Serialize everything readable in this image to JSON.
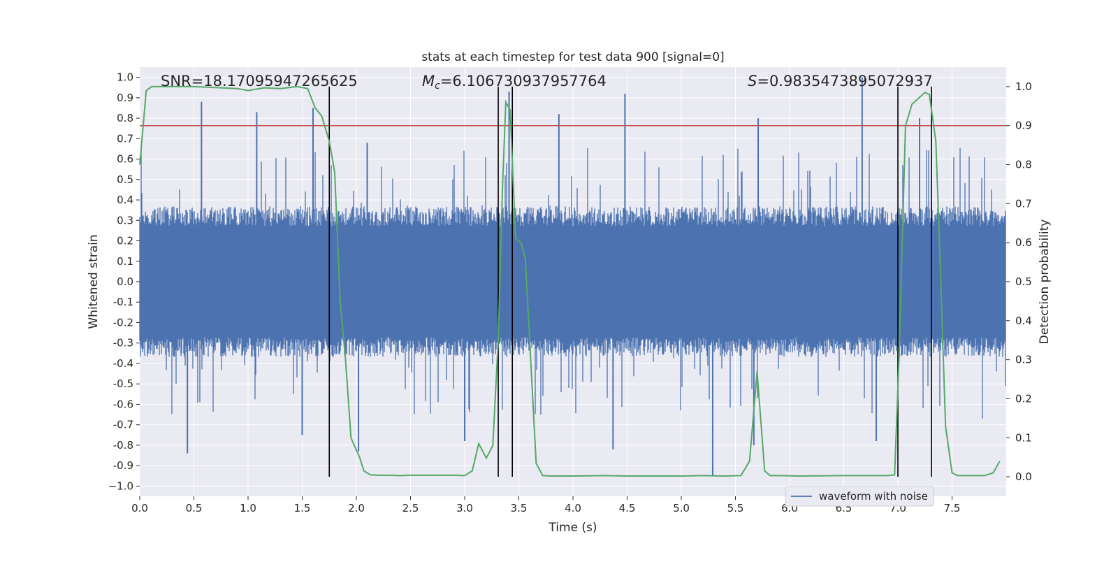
{
  "chart_data": {
    "type": "line",
    "title": "stats at each timestep for test data 900 [signal=0]",
    "xlabel": "Time (s)",
    "ylabel_left": "Whitened strain",
    "ylabel_right": "Detection probability",
    "xlim": [
      0,
      8
    ],
    "ylim_left": [
      -1.05,
      1.05
    ],
    "ylim_right": [
      -0.05,
      1.05
    ],
    "x_ticks": [
      "0.0",
      "0.5",
      "1.0",
      "1.5",
      "2.0",
      "2.5",
      "3.0",
      "3.5",
      "4.0",
      "4.5",
      "5.0",
      "5.5",
      "6.0",
      "6.5",
      "7.0",
      "7.5"
    ],
    "x_tick_values": [
      0,
      0.5,
      1.0,
      1.5,
      2.0,
      2.5,
      3.0,
      3.5,
      4.0,
      4.5,
      5.0,
      5.5,
      6.0,
      6.5,
      7.0,
      7.5
    ],
    "y_left_ticks": [
      "1.0",
      "0.9",
      "0.8",
      "0.7",
      "0.6",
      "0.5",
      "0.4",
      "0.3",
      "0.2",
      "0.1",
      "0.0",
      "-0.1",
      "-0.2",
      "-0.3",
      "-0.4",
      "-0.5",
      "-0.6",
      "-0.7",
      "-0.8",
      "-0.9",
      "−1.0"
    ],
    "y_left_tick_values": [
      1.0,
      0.9,
      0.8,
      0.7,
      0.6,
      0.5,
      0.4,
      0.3,
      0.2,
      0.1,
      0.0,
      -0.1,
      -0.2,
      -0.3,
      -0.4,
      -0.5,
      -0.6,
      -0.7,
      -0.8,
      -0.9,
      -1.0
    ],
    "y_right_ticks": [
      "1.0",
      "0.9",
      "0.8",
      "0.7",
      "0.6",
      "0.5",
      "0.4",
      "0.3",
      "0.2",
      "0.1",
      "0.0"
    ],
    "y_right_tick_values": [
      1.0,
      0.9,
      0.8,
      0.7,
      0.6,
      0.5,
      0.4,
      0.3,
      0.2,
      0.1,
      0.0
    ],
    "grid": true,
    "legend": {
      "position": "lower-right",
      "entries": [
        "waveform with noise"
      ]
    },
    "annotations": {
      "snr": "SNR=18.17095947265625",
      "mc_symbol": "M",
      "mc_sub": "c",
      "mc_value": "=6.106730937957764",
      "s_symbol": "S",
      "s_value": "=0.9835473895072937"
    },
    "threshold_right": 0.9,
    "vertical_lines": [
      1.75,
      3.31,
      3.44,
      7.0,
      7.31
    ],
    "series": [
      {
        "name": "waveform with noise",
        "axis": "left",
        "kind": "noise",
        "typical_amplitude": 0.32,
        "peak_positive": [
          [
            0.57,
            0.88
          ],
          [
            1.08,
            0.83
          ],
          [
            1.6,
            0.85
          ],
          [
            2.1,
            0.68
          ],
          [
            3.41,
            0.93
          ],
          [
            3.87,
            0.82
          ],
          [
            4.48,
            0.92
          ],
          [
            5.71,
            0.8
          ],
          [
            6.67,
            1.0
          ],
          [
            7.2,
            0.8
          ]
        ],
        "peak_negative": [
          [
            0.44,
            -0.84
          ],
          [
            1.5,
            -0.75
          ],
          [
            2.02,
            -0.83
          ],
          [
            3.0,
            -0.78
          ],
          [
            4.37,
            -0.82
          ],
          [
            5.29,
            -0.95
          ],
          [
            5.67,
            -0.8
          ],
          [
            6.8,
            -0.78
          ]
        ]
      },
      {
        "name": "",
        "axis": "right",
        "kind": "probability",
        "color": "#55a868",
        "x": [
          0.0,
          0.06,
          0.11,
          0.25,
          0.5,
          0.75,
          0.9,
          1.0,
          1.15,
          1.3,
          1.45,
          1.55,
          1.62,
          1.68,
          1.75,
          1.8,
          1.85,
          1.9,
          1.95,
          2.03,
          2.07,
          2.13,
          2.2,
          2.3,
          2.4,
          2.5,
          2.6,
          2.7,
          2.8,
          2.9,
          3.0,
          3.07,
          3.13,
          3.2,
          3.26,
          3.31,
          3.35,
          3.38,
          3.42,
          3.47,
          3.52,
          3.56,
          3.6,
          3.66,
          3.72,
          3.8,
          4.0,
          4.3,
          4.5,
          4.7,
          5.0,
          5.2,
          5.4,
          5.55,
          5.63,
          5.7,
          5.77,
          5.82,
          5.9,
          6.1,
          6.5,
          6.7,
          6.9,
          6.97,
          7.01,
          7.07,
          7.13,
          7.25,
          7.29,
          7.35,
          7.39,
          7.44,
          7.5,
          7.55,
          7.65,
          7.8,
          7.88,
          7.94
        ],
        "y": [
          0.8,
          0.99,
          1.0,
          1.0,
          1.0,
          0.997,
          0.995,
          0.99,
          0.997,
          0.995,
          1.0,
          0.995,
          0.945,
          0.925,
          0.86,
          0.78,
          0.45,
          0.3,
          0.1,
          0.05,
          0.015,
          0.005,
          0.004,
          0.004,
          0.003,
          0.004,
          0.004,
          0.004,
          0.004,
          0.004,
          0.003,
          0.015,
          0.085,
          0.048,
          0.08,
          0.35,
          0.75,
          0.96,
          0.94,
          0.61,
          0.6,
          0.56,
          0.35,
          0.035,
          0.003,
          0.002,
          0.002,
          0.003,
          0.002,
          0.002,
          0.002,
          0.003,
          0.002,
          0.003,
          0.04,
          0.27,
          0.015,
          0.003,
          0.003,
          0.002,
          0.003,
          0.003,
          0.003,
          0.005,
          0.3,
          0.9,
          0.955,
          0.985,
          0.98,
          0.86,
          0.55,
          0.13,
          0.01,
          0.003,
          0.003,
          0.003,
          0.01,
          0.04
        ]
      }
    ]
  }
}
